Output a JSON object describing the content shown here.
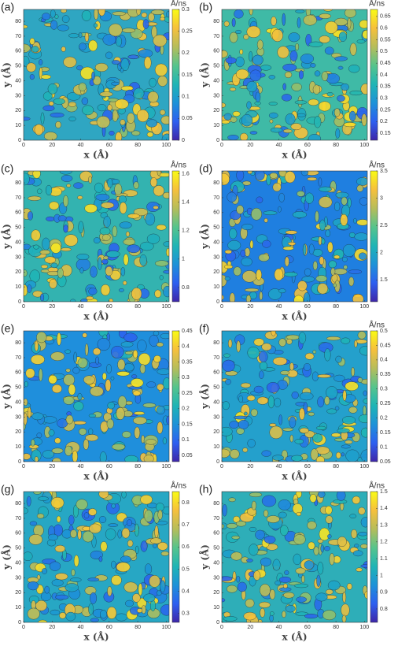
{
  "colormap": [
    "#3e26a8",
    "#2d5ff0",
    "#1d92d8",
    "#1fb5b5",
    "#56c48c",
    "#b6bd5a",
    "#f6c03c",
    "#f9fb15"
  ],
  "chart_data": [
    {
      "type": "contour",
      "label": "(a)",
      "unit": "Å/ns",
      "xlabel": "x (Å)",
      "ylabel": "y (Å)",
      "xlim": [
        0,
        102
      ],
      "ylim": [
        0,
        88
      ],
      "xticks": [
        0,
        20,
        40,
        60,
        80,
        100
      ],
      "yticks": [
        0,
        10,
        20,
        30,
        40,
        50,
        60,
        70,
        80
      ],
      "clim": [
        0,
        0.3
      ],
      "cticks": [
        0,
        0.05,
        0.1,
        0.15,
        0.2,
        0.25,
        0.3
      ],
      "base_color": "#2fa6c2"
    },
    {
      "type": "contour",
      "label": "(b)",
      "unit": "Å/ns",
      "xlabel": "x (Å)",
      "ylabel": "y (Å)",
      "xlim": [
        0,
        102
      ],
      "ylim": [
        0,
        88
      ],
      "xticks": [
        0,
        20,
        40,
        60,
        80,
        100
      ],
      "yticks": [
        0,
        10,
        20,
        30,
        40,
        50,
        60,
        70,
        80
      ],
      "clim": [
        0.12,
        0.68
      ],
      "cticks": [
        0.15,
        0.2,
        0.25,
        0.3,
        0.35,
        0.4,
        0.45,
        0.5,
        0.55,
        0.6,
        0.65
      ],
      "base_color": "#3fbaa6"
    },
    {
      "type": "contour",
      "label": "(c)",
      "unit": "Å/ns",
      "xlabel": "x (Å)",
      "ylabel": "y (Å)",
      "xlim": [
        0,
        102
      ],
      "ylim": [
        0,
        88
      ],
      "xticks": [
        0,
        20,
        40,
        60,
        80,
        100
      ],
      "yticks": [
        0,
        10,
        20,
        30,
        40,
        50,
        60,
        70,
        80
      ],
      "clim": [
        0.7,
        1.62
      ],
      "cticks": [
        0.8,
        1,
        1.2,
        1.4,
        1.6
      ],
      "base_color": "#33b3b0"
    },
    {
      "type": "contour",
      "label": "(d)",
      "unit": "Å/ns",
      "xlabel": "x (Å)",
      "ylabel": "y (Å)",
      "xlim": [
        0,
        102
      ],
      "ylim": [
        0,
        88
      ],
      "xticks": [
        0,
        20,
        40,
        60,
        80,
        100
      ],
      "yticks": [
        0,
        10,
        20,
        30,
        40,
        50,
        60,
        70,
        80
      ],
      "clim": [
        1.1,
        3.5
      ],
      "cticks": [
        1.5,
        2,
        2.5,
        3,
        3.5
      ],
      "base_color": "#1f7fe0"
    },
    {
      "type": "contour",
      "label": "(e)",
      "xlabel": "x (Å)",
      "ylabel": "y (Å)",
      "xlim": [
        0,
        102
      ],
      "ylim": [
        0,
        88
      ],
      "xticks": [
        0,
        20,
        40,
        60,
        80,
        100
      ],
      "yticks": [
        0,
        10,
        20,
        30,
        40,
        50,
        60,
        70,
        80
      ],
      "clim": [
        0.03,
        0.45
      ],
      "cticks": [
        0.05,
        0.1,
        0.15,
        0.2,
        0.25,
        0.3,
        0.35,
        0.4,
        0.45
      ],
      "base_color": "#1f8fdc"
    },
    {
      "type": "contour",
      "label": "(f)",
      "unit": "Å/ns",
      "xlabel": "x (Å)",
      "ylabel": "y (Å)",
      "xlim": [
        0,
        102
      ],
      "ylim": [
        0,
        88
      ],
      "xticks": [
        0,
        20,
        40,
        60,
        80,
        100
      ],
      "yticks": [
        0,
        10,
        20,
        30,
        40,
        50,
        60,
        70,
        80
      ],
      "clim": [
        0.05,
        0.5
      ],
      "cticks": [
        0.05,
        0.1,
        0.15,
        0.2,
        0.25,
        0.3,
        0.35,
        0.4,
        0.45,
        0.5
      ],
      "base_color": "#24a0cc"
    },
    {
      "type": "contour",
      "label": "(g)",
      "unit": "Å/ns",
      "xlabel": "x (Å)",
      "ylabel": "y (Å)",
      "xlim": [
        0,
        102
      ],
      "ylim": [
        0,
        88
      ],
      "xticks": [
        0,
        20,
        40,
        60,
        80,
        100
      ],
      "yticks": [
        0,
        10,
        20,
        30,
        40,
        50,
        60,
        70,
        80
      ],
      "clim": [
        0.26,
        0.85
      ],
      "cticks": [
        0.3,
        0.4,
        0.5,
        0.6,
        0.7,
        0.8
      ],
      "base_color": "#27a7c4"
    },
    {
      "type": "contour",
      "label": "(h)",
      "unit": "Å/ns",
      "xlabel": "x (Å)",
      "ylabel": "y (Å)",
      "xlim": [
        0,
        102
      ],
      "ylim": [
        0,
        88
      ],
      "xticks": [
        0,
        20,
        40,
        60,
        80,
        100
      ],
      "yticks": [
        0,
        10,
        20,
        30,
        40,
        50,
        60,
        70,
        80
      ],
      "clim": [
        0.72,
        1.5
      ],
      "cticks": [
        0.8,
        0.9,
        1,
        1.1,
        1.2,
        1.3,
        1.4,
        1.5
      ],
      "base_color": "#2eaeb8"
    }
  ]
}
